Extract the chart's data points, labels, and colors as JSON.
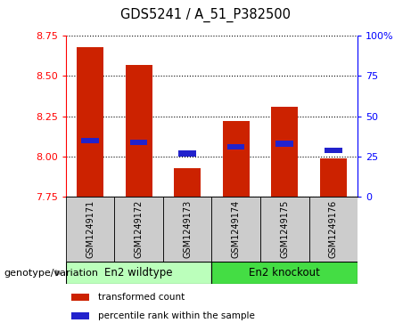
{
  "title": "GDS5241 / A_51_P382500",
  "samples": [
    "GSM1249171",
    "GSM1249172",
    "GSM1249173",
    "GSM1249174",
    "GSM1249175",
    "GSM1249176"
  ],
  "bar_tops": [
    8.68,
    8.57,
    7.93,
    8.22,
    8.31,
    7.99
  ],
  "bar_base": 7.75,
  "percentile_values": [
    8.1,
    8.09,
    8.02,
    8.06,
    8.08,
    8.04
  ],
  "ylim_left": [
    7.75,
    8.75
  ],
  "ylim_right": [
    0,
    100
  ],
  "yticks_left": [
    7.75,
    8.0,
    8.25,
    8.5,
    8.75
  ],
  "yticks_right": [
    0,
    25,
    50,
    75,
    100
  ],
  "ytick_labels_right": [
    "0",
    "25",
    "50",
    "75",
    "100%"
  ],
  "bar_color": "#cc2200",
  "blue_color": "#2222cc",
  "group1_label": "En2 wildtype",
  "group2_label": "En2 knockout",
  "group1_color": "#bbffbb",
  "group2_color": "#44dd44",
  "genotype_label": "genotype/variation",
  "legend_red": "transformed count",
  "legend_blue": "percentile rank within the sample",
  "bar_width": 0.55,
  "sample_bg_color": "#cccccc",
  "plot_bg": "#ffffff"
}
